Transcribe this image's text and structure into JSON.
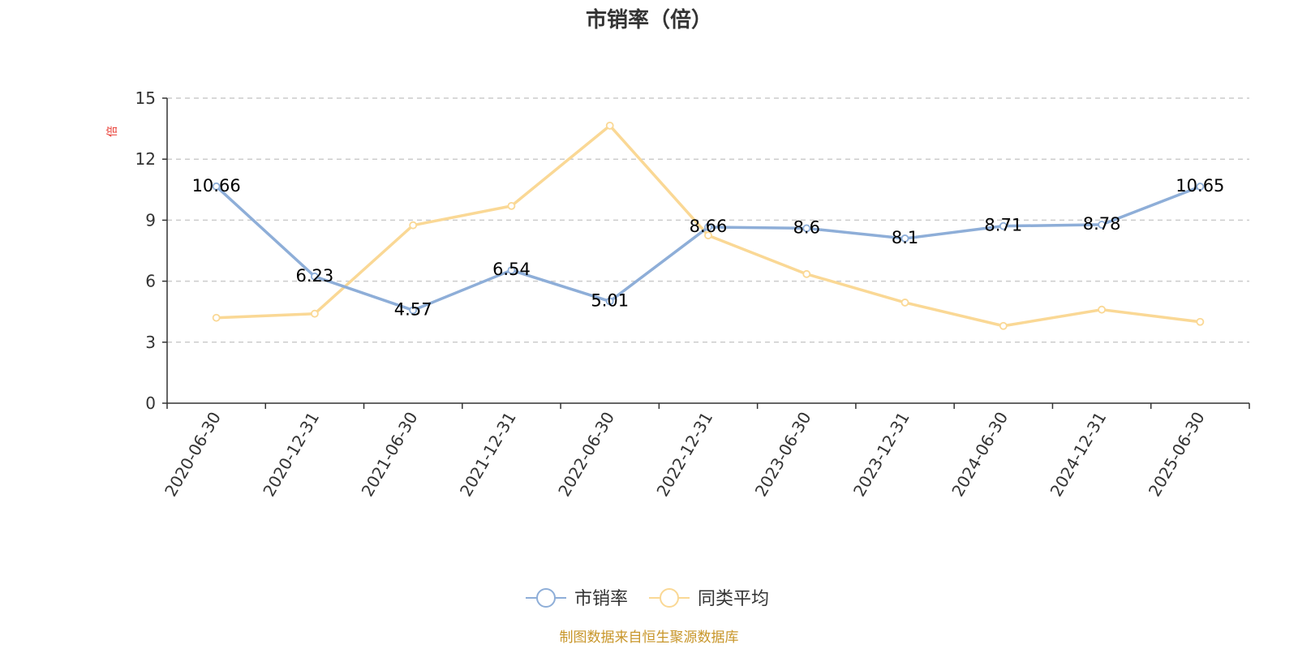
{
  "chart_data": {
    "type": "line",
    "title": "市销率（倍）",
    "ylabel": "倍",
    "ylim": [
      0,
      15
    ],
    "yticks": [
      0,
      3,
      6,
      9,
      12,
      15
    ],
    "grid": true,
    "legend_placement": "bottom-center",
    "categories": [
      "2020-06-30",
      "2020-12-31",
      "2021-06-30",
      "2021-12-31",
      "2022-06-30",
      "2022-12-31",
      "2023-06-30",
      "2023-12-31",
      "2024-06-30",
      "2024-12-31",
      "2025-06-30"
    ],
    "series": [
      {
        "name": "市销率",
        "color": "#8eaed8",
        "values": [
          10.66,
          6.23,
          4.57,
          6.54,
          5.01,
          8.66,
          8.6,
          8.1,
          8.71,
          8.78,
          10.65
        ],
        "labels": [
          "10.66",
          "6.23",
          "4.57",
          "6.54",
          "5.01",
          "8.66",
          "8.6",
          "8.1",
          "8.71",
          "8.78",
          "10.65"
        ]
      },
      {
        "name": "同类平均",
        "color": "#fad895",
        "values": [
          4.2,
          4.4,
          8.75,
          9.7,
          13.65,
          8.25,
          6.35,
          4.95,
          3.8,
          4.6,
          4.0
        ]
      }
    ],
    "source": "制图数据来自恒生聚源数据库",
    "colors": {
      "axis": "#333333",
      "grid": "#cccccc",
      "unit": "#e8382f",
      "source": "#c8962a"
    }
  }
}
